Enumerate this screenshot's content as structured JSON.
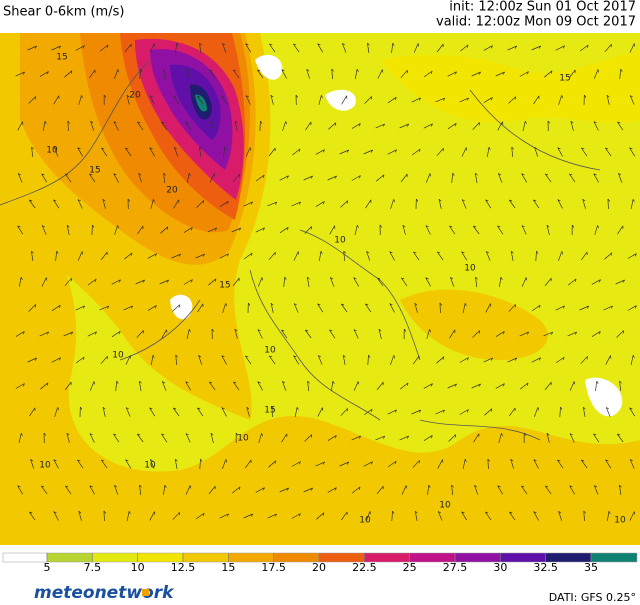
{
  "header": {
    "title": "Shear 0-6km (m/s)",
    "init": "init: 12:00z Sun 01 Oct 2017",
    "valid": "valid: 12:00z Mon 09 Oct 2017"
  },
  "legend": {
    "ticks": [
      5,
      7.5,
      10,
      12.5,
      15,
      17.5,
      20,
      22.5,
      25,
      27.5,
      30,
      32.5,
      35
    ],
    "colors": [
      "#ffffff",
      "#b8d430",
      "#e2ea12",
      "#f2e600",
      "#f2c800",
      "#f2aa00",
      "#f08a00",
      "#ee5e10",
      "#d81c6a",
      "#c0108a",
      "#9010a4",
      "#6010a8",
      "#201c70",
      "#108272"
    ]
  },
  "contour_labels": [
    "15",
    "20",
    "15",
    "20",
    "15",
    "10",
    "10",
    "10",
    "10",
    "10",
    "15",
    "10",
    "10",
    "10",
    "10",
    "10",
    "10",
    "15"
  ],
  "footer": {
    "brand": "meteonetwork",
    "source": "DATI: GFS 0.25°"
  }
}
